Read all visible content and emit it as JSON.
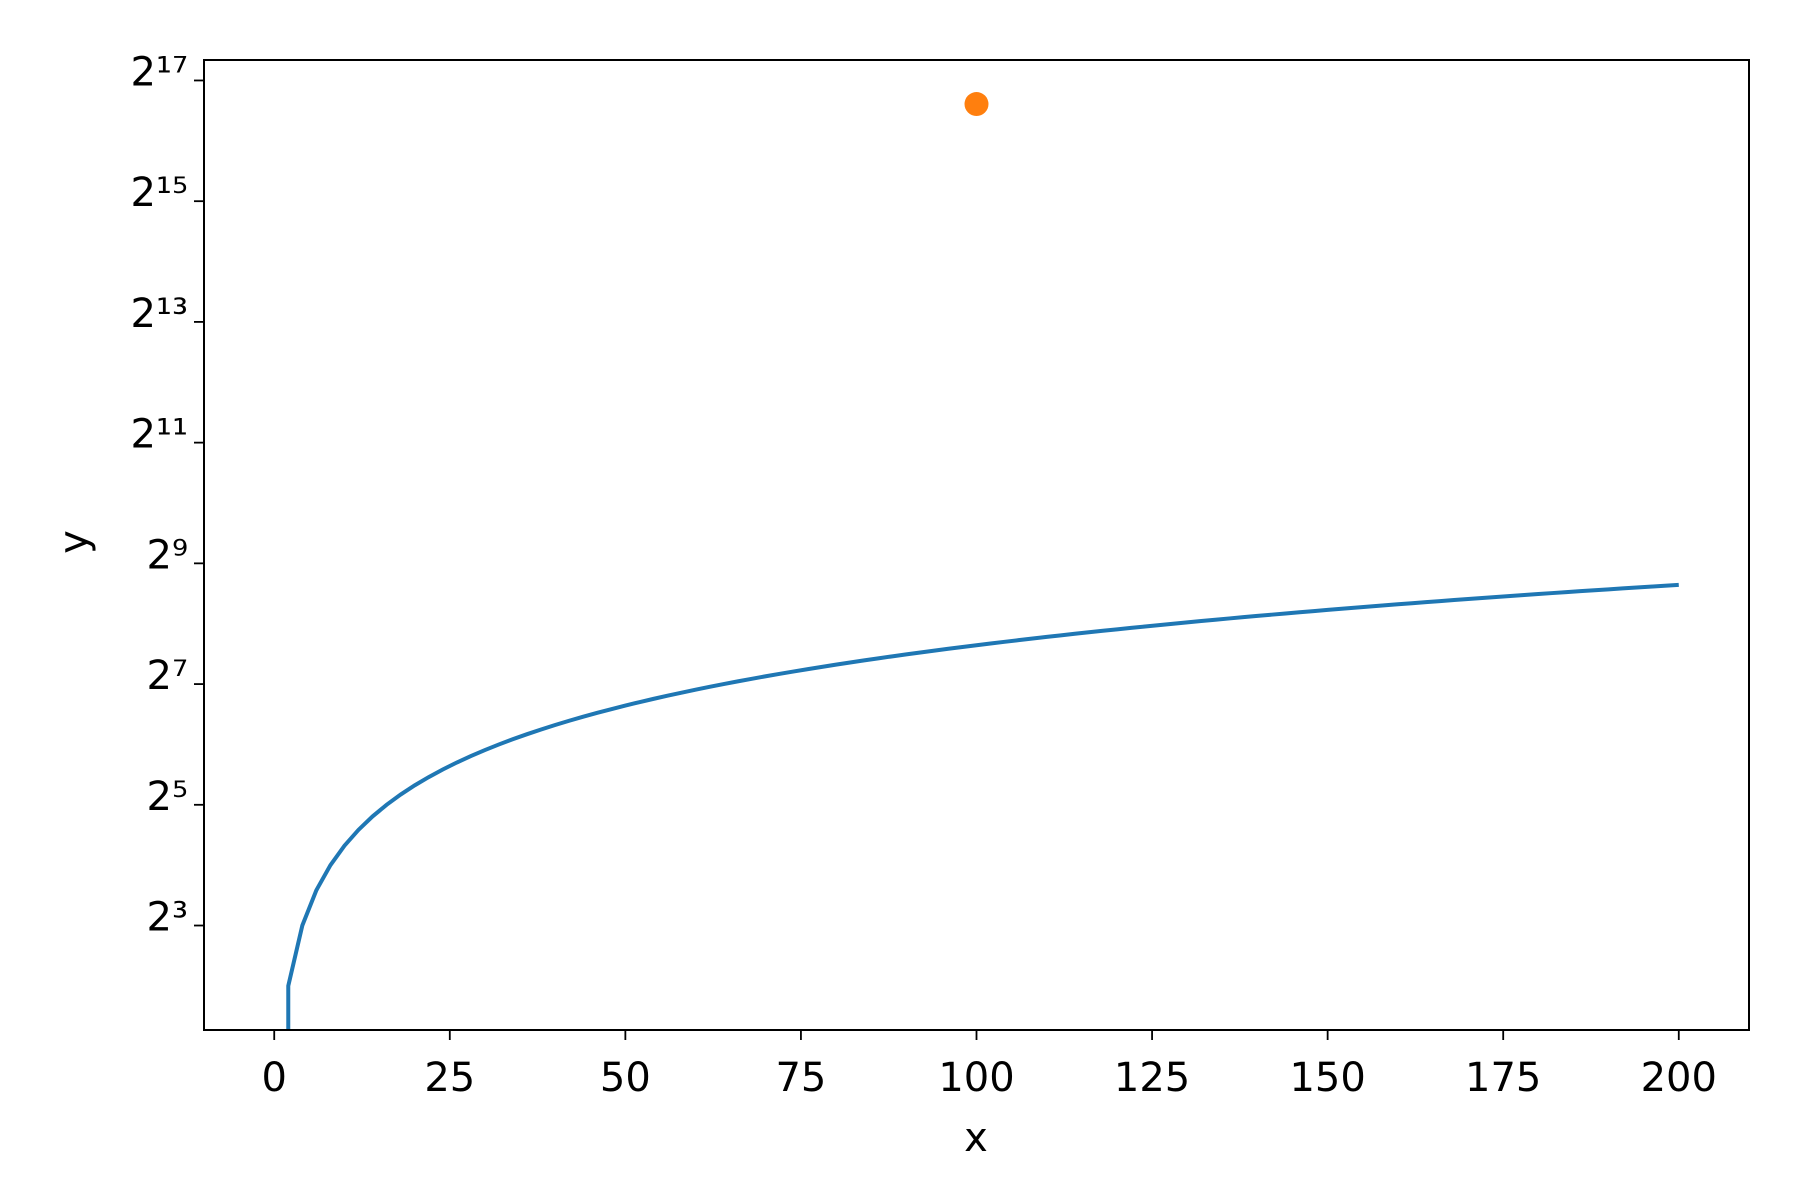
{
  "chart_data": {
    "type": "line",
    "xlabel": "x",
    "ylabel": "y",
    "log_y": true,
    "log_base": 2,
    "grid": false,
    "xlim": [
      -10,
      210
    ],
    "ylim": [
      2.41,
      165800
    ],
    "xticks": [
      0,
      25,
      50,
      75,
      100,
      125,
      150,
      175,
      200
    ],
    "yticks": [
      {
        "value": 8,
        "label": "2³"
      },
      {
        "value": 32,
        "label": "2⁵"
      },
      {
        "value": 128,
        "label": "2⁷"
      },
      {
        "value": 512,
        "label": "2⁹"
      },
      {
        "value": 2048,
        "label": "2¹¹"
      },
      {
        "value": 8192,
        "label": "2¹³"
      },
      {
        "value": 32768,
        "label": "2¹⁵"
      },
      {
        "value": 131072,
        "label": "2¹⁷"
      }
    ],
    "series": [
      {
        "color": "#1f77b4",
        "x": [
          0,
          2,
          4,
          6,
          8,
          10,
          12,
          14,
          16,
          18,
          20,
          22,
          24,
          26,
          28,
          30,
          32,
          34,
          36,
          38,
          40,
          42,
          44,
          46,
          48,
          50,
          52,
          54,
          56,
          58,
          60,
          62,
          64,
          66,
          68,
          70,
          72,
          74,
          76,
          78,
          80,
          82,
          84,
          86,
          88,
          90,
          92,
          94,
          96,
          98,
          100,
          102,
          104,
          106,
          108,
          110,
          112,
          114,
          116,
          118,
          120,
          122,
          124,
          126,
          128,
          130,
          132,
          134,
          136,
          138,
          140,
          142,
          144,
          146,
          148,
          150,
          152,
          154,
          156,
          158,
          160,
          162,
          164,
          166,
          168,
          170,
          172,
          174,
          176,
          178,
          180,
          182,
          184,
          186,
          188,
          190,
          192,
          194,
          196,
          198,
          200
        ],
        "values": [
          0,
          4,
          8,
          12,
          16,
          20,
          24,
          28,
          32,
          36,
          40,
          44,
          48,
          52,
          56,
          60,
          64,
          68,
          72,
          76,
          80,
          84,
          88,
          92,
          96,
          100,
          104,
          108,
          112,
          116,
          120,
          124,
          128,
          132,
          136,
          140,
          144,
          148,
          152,
          156,
          160,
          164,
          168,
          172,
          176,
          180,
          184,
          188,
          192,
          196,
          200,
          204,
          208,
          212,
          216,
          220,
          224,
          228,
          232,
          236,
          240,
          244,
          248,
          252,
          256,
          260,
          264,
          268,
          272,
          276,
          280,
          284,
          288,
          292,
          296,
          300,
          304,
          308,
          312,
          316,
          320,
          324,
          328,
          332,
          336,
          340,
          344,
          348,
          352,
          356,
          360,
          364,
          368,
          372,
          376,
          380,
          384,
          388,
          392,
          396,
          400
        ]
      },
      {
        "color": "#ff7f0e",
        "marker": "o",
        "x": [
          100
        ],
        "values": [
          100000
        ]
      }
    ]
  }
}
